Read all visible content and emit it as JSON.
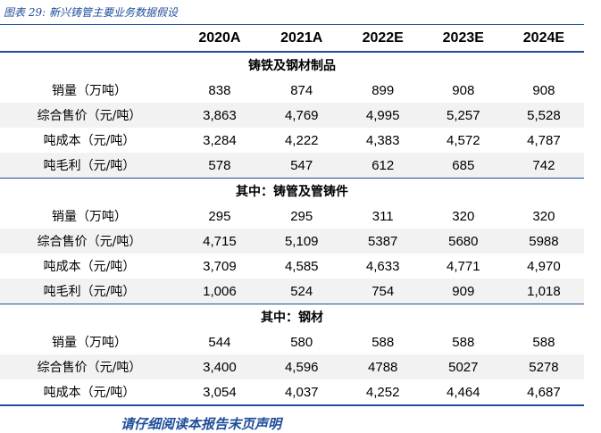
{
  "caption": "图表 29:  新兴铸管主要业务数据假设",
  "table": {
    "columns": [
      "2020A",
      "2021A",
      "2022E",
      "2023E",
      "2024E"
    ],
    "sections": [
      {
        "title": "铸铁及钢材制品",
        "rows": [
          {
            "label": "销量（万吨）",
            "values": [
              "838",
              "874",
              "899",
              "908",
              "908"
            ]
          },
          {
            "label": "综合售价（元/吨）",
            "values": [
              "3,863",
              "4,769",
              "4,995",
              "5,257",
              "5,528"
            ]
          },
          {
            "label": "吨成本（元/吨）",
            "values": [
              "3,284",
              "4,222",
              "4,383",
              "4,572",
              "4,787"
            ]
          },
          {
            "label": "吨毛利（元/吨）",
            "values": [
              "578",
              "547",
              "612",
              "685",
              "742"
            ]
          }
        ]
      },
      {
        "title": "其中：铸管及管铸件",
        "rows": [
          {
            "label": "销量（万吨）",
            "values": [
              "295",
              "295",
              "311",
              "320",
              "320"
            ]
          },
          {
            "label": "综合售价（元/吨）",
            "values": [
              "4,715",
              "5,109",
              "5387",
              "5680",
              "5988"
            ]
          },
          {
            "label": "吨成本（元/吨）",
            "values": [
              "3,709",
              "4,585",
              "4,633",
              "4,771",
              "4,970"
            ]
          },
          {
            "label": "吨毛利（元/吨）",
            "values": [
              "1,006",
              "524",
              "754",
              "909",
              "1,018"
            ]
          }
        ]
      },
      {
        "title": "其中：钢材",
        "rows": [
          {
            "label": "销量（万吨）",
            "values": [
              "544",
              "580",
              "588",
              "588",
              "588"
            ]
          },
          {
            "label": "综合售价（元/吨）",
            "values": [
              "3,400",
              "4,596",
              "4788",
              "5027",
              "5278"
            ]
          },
          {
            "label": "吨成本（元/吨）",
            "values": [
              "3,054",
              "4,037",
              "4,252",
              "4,464",
              "4,687"
            ]
          }
        ]
      }
    ]
  },
  "footer": "请仔细阅读本报告末页声明"
}
